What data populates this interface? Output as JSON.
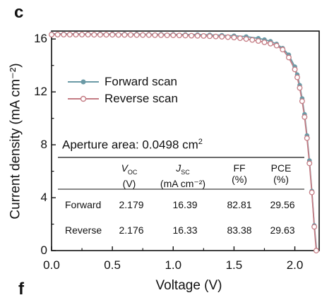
{
  "panel_letters": {
    "top": "c",
    "bottom": "f"
  },
  "colors": {
    "forward": "#6b9aa6",
    "reverse": "#c47c84",
    "axis": "#111111"
  },
  "chart_data": {
    "type": "line",
    "title": "",
    "xlabel": "Voltage (V)",
    "ylabel": "Current density (mA cm⁻²)",
    "xlim": [
      0,
      2.2
    ],
    "ylim": [
      0,
      16.6
    ],
    "xticks": [
      0.0,
      0.5,
      1.0,
      1.5,
      2.0
    ],
    "xtick_labels": [
      "0.0",
      "0.5",
      "1.0",
      "1.5",
      "2.0"
    ],
    "yticks": [
      0,
      4,
      8,
      12,
      16
    ],
    "ytick_labels": [
      "0",
      "4",
      "8",
      "12",
      "16"
    ],
    "grid": false,
    "legend": "upper-left",
    "series": [
      {
        "name": "Forward scan",
        "marker": "filled-circle",
        "x": [
          0.0,
          0.1,
          0.2,
          0.3,
          0.4,
          0.5,
          0.6,
          0.7,
          0.8,
          0.9,
          1.0,
          1.1,
          1.2,
          1.3,
          1.4,
          1.5,
          1.6,
          1.7,
          1.75,
          1.8,
          1.85,
          1.9,
          1.95,
          2.0,
          2.02,
          2.04,
          2.06,
          2.08,
          2.1,
          2.12,
          2.14,
          2.16,
          2.179
        ],
        "y": [
          16.39,
          16.39,
          16.39,
          16.38,
          16.38,
          16.38,
          16.37,
          16.37,
          16.36,
          16.36,
          16.35,
          16.34,
          16.33,
          16.31,
          16.28,
          16.24,
          16.18,
          16.05,
          15.95,
          15.82,
          15.62,
          15.3,
          14.8,
          13.9,
          13.3,
          12.5,
          11.5,
          10.3,
          8.7,
          6.8,
          4.5,
          1.9,
          0.0
        ]
      },
      {
        "name": "Reverse scan",
        "marker": "open-circle",
        "x": [
          0.0,
          0.05,
          0.1,
          0.15,
          0.2,
          0.25,
          0.3,
          0.35,
          0.4,
          0.45,
          0.5,
          0.55,
          0.6,
          0.65,
          0.7,
          0.75,
          0.8,
          0.85,
          0.9,
          0.95,
          1.0,
          1.05,
          1.1,
          1.15,
          1.2,
          1.25,
          1.3,
          1.35,
          1.4,
          1.45,
          1.5,
          1.55,
          1.6,
          1.65,
          1.7,
          1.75,
          1.8,
          1.85,
          1.9,
          1.95,
          2.0,
          2.02,
          2.04,
          2.06,
          2.08,
          2.1,
          2.12,
          2.14,
          2.16,
          2.176
        ],
        "y": [
          16.33,
          16.33,
          16.33,
          16.33,
          16.33,
          16.33,
          16.33,
          16.32,
          16.32,
          16.32,
          16.32,
          16.31,
          16.31,
          16.31,
          16.3,
          16.3,
          16.3,
          16.29,
          16.29,
          16.28,
          16.28,
          16.27,
          16.26,
          16.25,
          16.24,
          16.23,
          16.21,
          16.19,
          16.17,
          16.14,
          16.11,
          16.06,
          16.0,
          15.93,
          15.85,
          15.75,
          15.65,
          15.5,
          15.2,
          14.6,
          13.7,
          13.1,
          12.3,
          11.3,
          10.1,
          8.5,
          6.6,
          4.4,
          1.8,
          0.0
        ]
      }
    ],
    "annotation": {
      "text": "Aperture area: 0.0498 cm",
      "superscript": "2"
    },
    "table": {
      "headers": [
        {
          "main": "V",
          "sub": "OC",
          "unit": "(V)"
        },
        {
          "main": "J",
          "sub": "SC",
          "unit": "(mA cm⁻²)"
        },
        {
          "main": "FF",
          "sub": "",
          "unit": "(%)"
        },
        {
          "main": "PCE",
          "sub": "",
          "unit": "(%)"
        }
      ],
      "rows": [
        {
          "name": "Forward",
          "voc": "2.179",
          "jsc": "16.39",
          "ff": "82.81",
          "pce": "29.56"
        },
        {
          "name": "Reverse",
          "voc": "2.176",
          "jsc": "16.33",
          "ff": "83.38",
          "pce": "29.63"
        }
      ]
    }
  }
}
